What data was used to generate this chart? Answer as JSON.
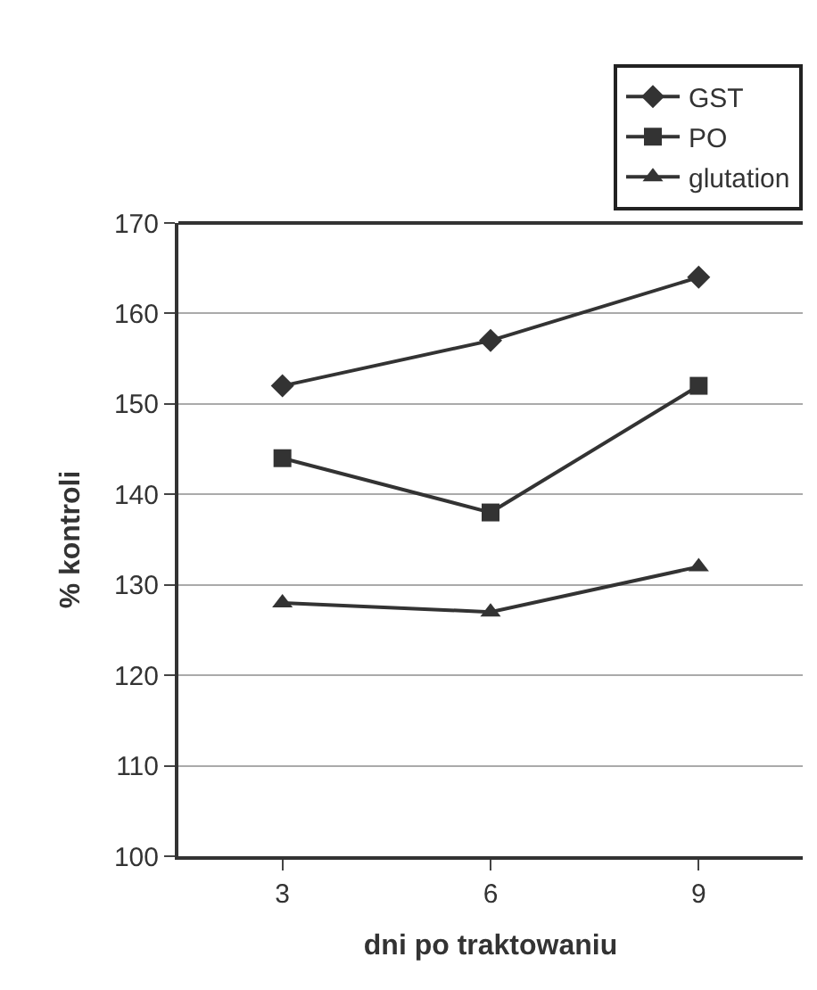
{
  "chart_data": {
    "type": "line",
    "xlabel": "dni po traktowaniu",
    "ylabel": "% kontroli",
    "categories": [
      "3",
      "6",
      "9"
    ],
    "series": [
      {
        "name": "GST",
        "color": "#333333",
        "marker": "diamond",
        "values": [
          152,
          157,
          164
        ]
      },
      {
        "name": "PO",
        "color": "#333333",
        "marker": "square",
        "values": [
          144,
          138,
          152
        ]
      },
      {
        "name": "glutation",
        "color": "#333333",
        "marker": "triangle",
        "values": [
          128,
          127,
          132
        ]
      }
    ],
    "ylim": [
      100,
      170
    ],
    "yticks": [
      100,
      110,
      120,
      130,
      140,
      150,
      160,
      170
    ],
    "grid": "y",
    "legend": "top right",
    "line_style": "solid"
  }
}
